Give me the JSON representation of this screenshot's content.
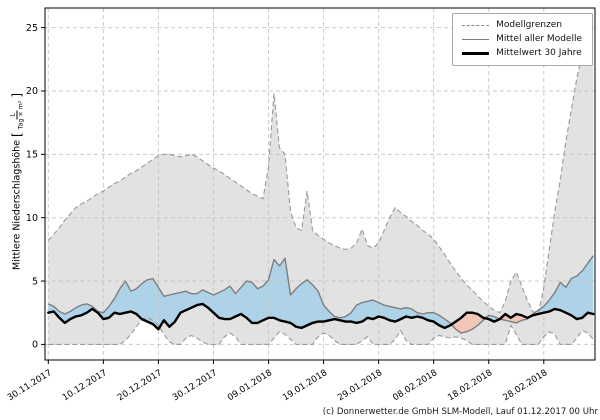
{
  "footer": {
    "copyright": "(c) Donnerwetter.de GmbH SLM-Modell, Lauf 01.12.2017 00 Uhr"
  },
  "chart_data": {
    "type": "area",
    "title": "",
    "xlabel": "",
    "ylabel": {
      "text": "Mittlere Niederschlagshöhe",
      "unit_numerator": "L",
      "unit_denominator": "Tag × m²"
    },
    "grid": true,
    "ylim": [
      -1.23,
      26.55
    ],
    "yticks": [
      0,
      5,
      10,
      15,
      20,
      25
    ],
    "xlim_days": [
      -0.6,
      99.3
    ],
    "xtick_days": [
      0,
      10,
      20,
      30,
      40,
      50,
      60,
      70,
      80,
      90
    ],
    "xticklabels": [
      "30.11.2017",
      "10.12.2017",
      "20.12.2017",
      "30.12.2017",
      "09.01.2018",
      "19.01.2018",
      "29.01.2018",
      "08.02.2018",
      "18.02.2018",
      "28.02.2018"
    ],
    "legend": {
      "position": "top-right",
      "entries": [
        {
          "label": "Modellgrenzen",
          "style": "dashed-gray"
        },
        {
          "label": "Mittel aller Modelle",
          "style": "solid-gray"
        },
        {
          "label": "Mittelwert 30 Jahre",
          "style": "solid-black-thick"
        }
      ]
    },
    "colors": {
      "range_fill": "#e2e2e2",
      "bound_line": "#999999",
      "mean_line": "#7d7d7d",
      "clim_line": "#000000",
      "above_fill": "#aed3e9",
      "below_fill": "#f2c6b6",
      "grid": "#c3c3c3",
      "frame": "#000000"
    },
    "series": [
      {
        "name": "Modellgrenze oben",
        "role": "upper_bound",
        "values": [
          8.2,
          8.7,
          9.2,
          9.8,
          10.3,
          10.8,
          11.1,
          11.3,
          11.6,
          11.9,
          12.1,
          12.4,
          12.7,
          12.9,
          13.2,
          13.5,
          13.7,
          14.0,
          14.3,
          14.6,
          14.9,
          15.0,
          15.0,
          14.9,
          14.8,
          14.9,
          15.0,
          14.8,
          14.5,
          14.2,
          13.9,
          13.7,
          13.4,
          13.1,
          12.8,
          12.5,
          12.2,
          11.9,
          11.7,
          11.5,
          14.0,
          19.8,
          15.5,
          15.0,
          10.5,
          9.2,
          9.0,
          12.1,
          9.0,
          8.6,
          8.3,
          8.0,
          7.8,
          7.6,
          7.5,
          7.6,
          8.0,
          9.1,
          7.8,
          7.6,
          8.0,
          9.0,
          10.0,
          10.8,
          10.4,
          10.1,
          9.7,
          9.4,
          9.0,
          8.7,
          8.3,
          7.7,
          7.1,
          6.4,
          5.8,
          5.2,
          4.7,
          4.3,
          3.8,
          3.4,
          3.0,
          2.7,
          2.5,
          3.4,
          5.0,
          5.7,
          4.6,
          3.5,
          2.6,
          2.4,
          4.5,
          7.5,
          10.5,
          13.0,
          16.0,
          18.5,
          21.0,
          23.0,
          24.8,
          26.0
        ]
      },
      {
        "name": "Modellgrenze unten",
        "role": "lower_bound",
        "values": [
          0,
          0,
          0,
          0,
          0,
          0,
          0,
          0,
          0,
          0,
          0,
          0,
          0,
          0,
          0.3,
          0.8,
          1.4,
          2.0,
          2.1,
          1.9,
          1.5,
          0.8,
          0.2,
          0,
          0,
          0.5,
          0.7,
          0.5,
          0.2,
          0,
          0,
          0,
          0.6,
          0.9,
          0.6,
          0,
          0,
          0,
          0,
          0,
          0,
          0.5,
          1.0,
          0.8,
          0.4,
          0,
          0,
          0,
          0,
          0.6,
          0.9,
          0.7,
          0.3,
          0,
          0,
          0,
          0,
          0.3,
          0.6,
          0,
          0,
          0,
          0,
          0.4,
          1.1,
          0.3,
          0,
          0,
          0,
          0,
          0.5,
          0.7,
          0.6,
          0.5,
          0.6,
          0.5,
          0.3,
          0,
          0,
          0,
          0,
          0,
          0,
          0,
          1.5,
          0.8,
          0,
          0,
          0,
          0,
          0.6,
          1.0,
          0.8,
          0,
          0,
          0,
          0.5,
          1.1,
          0.9,
          0.4
        ]
      },
      {
        "name": "Mittel aller Modelle",
        "role": "model_mean",
        "values": [
          3.2,
          3.0,
          2.6,
          2.4,
          2.6,
          2.9,
          3.1,
          3.2,
          3.0,
          2.6,
          2.5,
          3.0,
          3.6,
          4.4,
          5.0,
          4.2,
          4.4,
          4.8,
          5.1,
          5.2,
          4.5,
          3.8,
          3.9,
          4.0,
          4.1,
          4.2,
          4.0,
          4.0,
          4.3,
          4.1,
          3.9,
          4.1,
          4.3,
          4.6,
          4.0,
          4.5,
          5.0,
          4.9,
          4.4,
          4.6,
          5.1,
          6.7,
          6.2,
          6.8,
          3.9,
          4.4,
          4.8,
          5.1,
          4.7,
          4.2,
          3.1,
          2.6,
          2.2,
          2.1,
          2.2,
          2.5,
          3.1,
          3.3,
          3.4,
          3.5,
          3.3,
          3.1,
          3.0,
          2.9,
          2.8,
          2.9,
          2.8,
          2.5,
          2.4,
          2.5,
          2.5,
          2.3,
          2.0,
          1.7,
          1.2,
          0.9,
          1.0,
          1.2,
          1.5,
          1.9,
          2.3,
          2.2,
          2.0,
          1.9,
          1.8,
          1.7,
          1.9,
          2.0,
          2.4,
          2.7,
          3.0,
          3.5,
          4.1,
          4.9,
          4.5,
          5.2,
          5.4,
          5.8,
          6.4,
          7.0
        ]
      },
      {
        "name": "Mittelwert 30 Jahre",
        "role": "climatology",
        "values": [
          2.5,
          2.6,
          2.1,
          1.7,
          2.0,
          2.2,
          2.3,
          2.5,
          2.8,
          2.5,
          2.0,
          2.1,
          2.5,
          2.4,
          2.5,
          2.6,
          2.4,
          2.0,
          1.8,
          1.6,
          1.2,
          1.9,
          1.4,
          1.8,
          2.5,
          2.7,
          2.9,
          3.1,
          3.2,
          2.9,
          2.5,
          2.1,
          2.0,
          2.0,
          2.2,
          2.4,
          2.1,
          1.7,
          1.7,
          1.9,
          2.1,
          2.1,
          1.9,
          1.8,
          1.7,
          1.4,
          1.3,
          1.5,
          1.7,
          1.8,
          1.8,
          1.9,
          2.0,
          1.9,
          1.8,
          1.8,
          1.7,
          1.8,
          2.1,
          2.0,
          2.2,
          2.1,
          1.9,
          1.8,
          2.0,
          2.2,
          2.1,
          2.2,
          2.1,
          1.9,
          1.8,
          1.5,
          1.3,
          1.5,
          1.8,
          2.1,
          2.5,
          2.5,
          2.4,
          2.1,
          2.0,
          1.8,
          2.0,
          2.4,
          2.1,
          2.4,
          2.3,
          2.1,
          2.3,
          2.4,
          2.5,
          2.6,
          2.8,
          2.7,
          2.5,
          2.3,
          2.0,
          2.1,
          2.5,
          2.4
        ]
      }
    ]
  }
}
